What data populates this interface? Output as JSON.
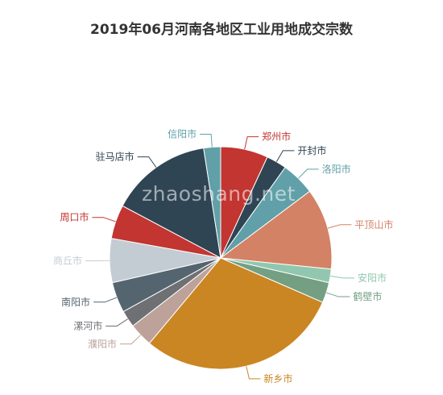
{
  "chart_data": {
    "type": "pie",
    "title": "2019年06月河南各地区工业用地成交宗数",
    "slices": [
      {
        "label": "郑州市",
        "value": 7,
        "color": "#c23531"
      },
      {
        "label": "开封市",
        "value": 3,
        "color": "#2f4554"
      },
      {
        "label": "洛阳市",
        "value": 5,
        "color": "#61a0a8"
      },
      {
        "label": "平顶山市",
        "value": 12,
        "color": "#d48265"
      },
      {
        "label": "安阳市",
        "value": 2,
        "color": "#91c7ae"
      },
      {
        "label": "鹤壁市",
        "value": 3,
        "color": "#749f83"
      },
      {
        "label": "新乡市",
        "value": 30,
        "color": "#ca8622"
      },
      {
        "label": "濮阳市",
        "value": 3.5,
        "color": "#bda29a"
      },
      {
        "label": "漯河市",
        "value": 2.5,
        "color": "#6e7074"
      },
      {
        "label": "南阳市",
        "value": 4.5,
        "color": "#546570"
      },
      {
        "label": "商丘市",
        "value": 6.5,
        "color": "#c4ccd3"
      },
      {
        "label": "周口市",
        "value": 5,
        "color": "#c23531"
      },
      {
        "label": "驻马店市",
        "value": 15,
        "color": "#2f4554"
      },
      {
        "label": "信阳市",
        "value": 2.5,
        "color": "#61a0a8"
      }
    ],
    "legend": "none"
  },
  "watermark": "zhaoshang.net"
}
